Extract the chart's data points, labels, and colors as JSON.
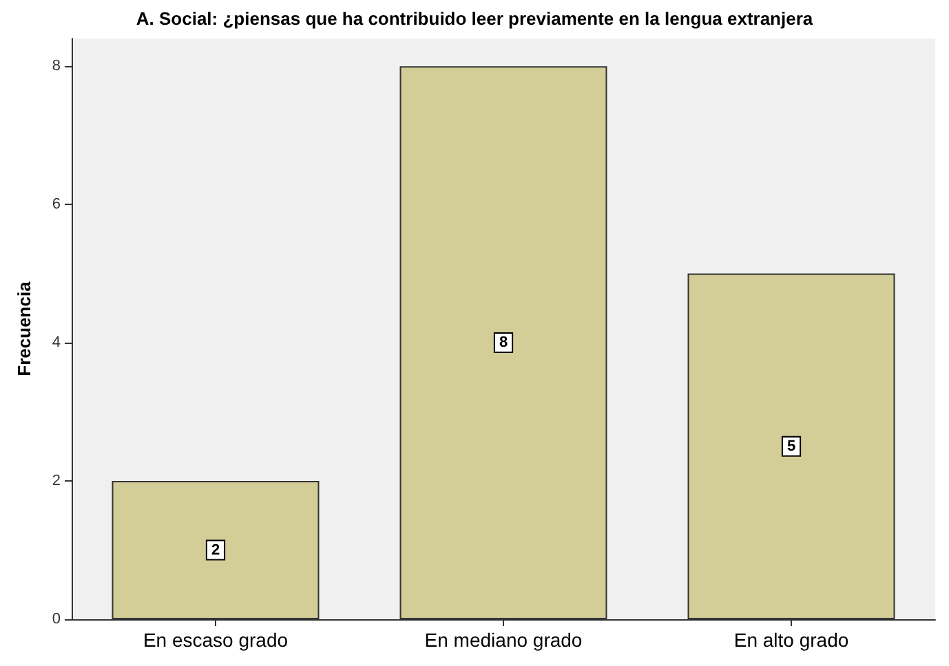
{
  "chart_data": {
    "type": "bar",
    "title": "A. Social: ¿piensas que ha contribuido leer previamente en la lengua extranjera",
    "ylabel": "Frecuencia",
    "categories": [
      "En escaso grado",
      "En mediano grado",
      "En alto grado"
    ],
    "values": [
      2,
      8,
      5
    ],
    "color": "#d3cd98",
    "ylim": [
      0,
      8.4
    ],
    "yticks": [
      0,
      2,
      4,
      6,
      8
    ],
    "grid": false,
    "data_labels": true
  }
}
